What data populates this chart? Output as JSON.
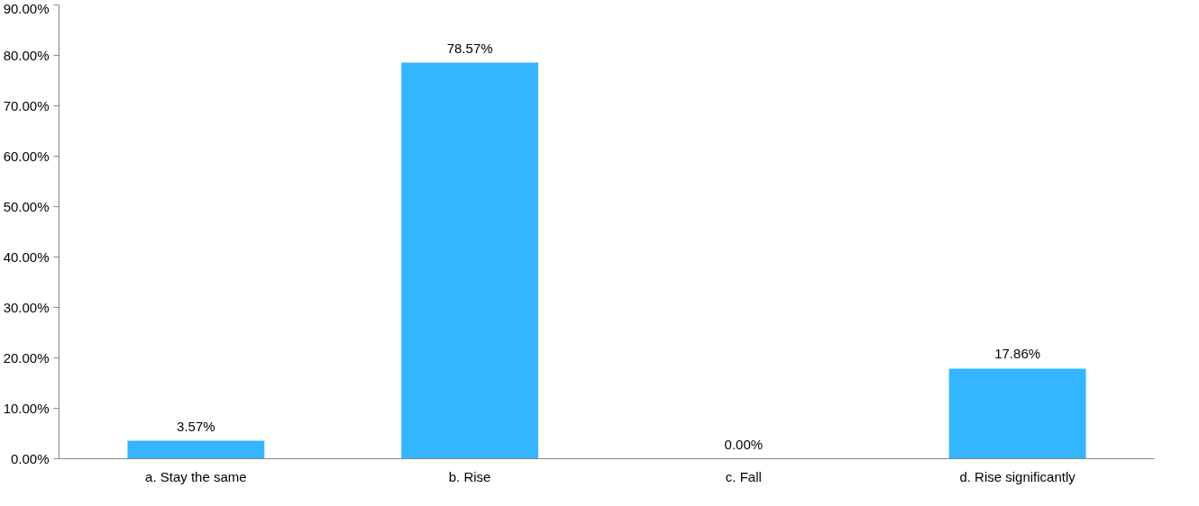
{
  "chart_data": {
    "type": "bar",
    "categories": [
      "a. Stay the same",
      "b. Rise",
      "c. Fall",
      "d. Rise significantly"
    ],
    "values": [
      3.57,
      78.57,
      0,
      17.86
    ],
    "color": "#33b5ff",
    "value_labels": [
      "3.57%",
      "78.57%",
      "0.00%",
      "17.86%"
    ],
    "ylim": [
      0,
      90
    ],
    "yticks": [
      {
        "value": 0,
        "label": "0.00%"
      },
      {
        "value": 10,
        "label": "10.00%"
      },
      {
        "value": 20,
        "label": "20.00%"
      },
      {
        "value": 30,
        "label": "30.00%"
      },
      {
        "value": 40,
        "label": "40.00%"
      },
      {
        "value": 50,
        "label": "50.00%"
      },
      {
        "value": 60,
        "label": "60.00%"
      },
      {
        "value": 70,
        "label": "70.00%"
      },
      {
        "value": 80,
        "label": "80.00%"
      },
      {
        "value": 90,
        "label": "90.00%"
      }
    ],
    "grid": false
  }
}
